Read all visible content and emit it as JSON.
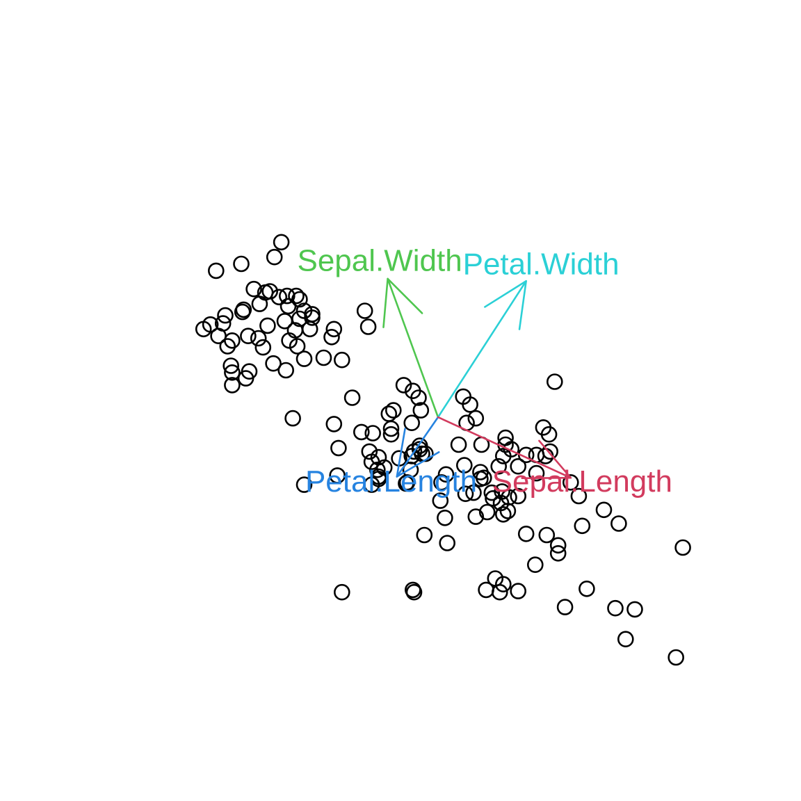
{
  "chart_data": {
    "type": "scatter",
    "title": "",
    "xlabel": "",
    "ylabel": "",
    "axes_visible": false,
    "grid": false,
    "xlim": [
      -3.1,
      3.1
    ],
    "ylim": [
      -3.1,
      3.1
    ],
    "origin": [
      0,
      0
    ],
    "points": [
      [
        -1.37,
        1.53
      ],
      [
        -1.94,
        1.28
      ],
      [
        -1.43,
        1.4
      ],
      [
        -1.72,
        1.34
      ],
      [
        -1.51,
        1.09
      ],
      [
        -1.47,
        1.1
      ],
      [
        -1.86,
        0.89
      ],
      [
        -1.66,
        0.71
      ],
      [
        -1.24,
        1.06
      ],
      [
        -1.92,
        0.71
      ],
      [
        -1.81,
        0.45
      ],
      [
        -1.32,
        1.06
      ],
      [
        -1.99,
        0.81
      ],
      [
        -1.71,
        0.92
      ],
      [
        -1.61,
        1.12
      ],
      [
        -1.17,
        0.93
      ],
      [
        -0.84,
        0.5
      ],
      [
        -1.49,
        0.8
      ],
      [
        -1.33,
        0.41
      ],
      [
        -1.7,
        0.94
      ],
      [
        -1.88,
        0.82
      ],
      [
        -2.05,
        0.77
      ],
      [
        -1.84,
        0.62
      ],
      [
        -1.8,
        0.67
      ],
      [
        -1.57,
        0.69
      ],
      [
        -1.44,
        0.47
      ],
      [
        -1.56,
        0.99
      ],
      [
        -1.1,
        0.87
      ],
      [
        -1.0,
        0.52
      ],
      [
        -1.65,
        0.4
      ],
      [
        -1.12,
        0.77
      ],
      [
        -1.25,
        0.76
      ],
      [
        -1.1,
        0.9
      ],
      [
        -1.3,
        0.67
      ],
      [
        -0.91,
        0.77
      ],
      [
        -0.93,
        0.7
      ],
      [
        -1.53,
        0.61
      ],
      [
        -0.61,
        0.79
      ],
      [
        -0.64,
        0.93
      ],
      [
        -1.34,
        0.84
      ],
      [
        -1.21,
        0.86
      ],
      [
        -1.68,
        0.34
      ],
      [
        -1.31,
        0.97
      ],
      [
        -1.17,
        0.51
      ],
      [
        -1.8,
        0.28
      ],
      [
        -1.23,
        0.62
      ],
      [
        -1.8,
        0.39
      ],
      [
        -1.39,
        1.05
      ],
      [
        -1.21,
        1.03
      ],
      [
        -0.75,
        0.17
      ],
      [
        -1.27,
        -0.01
      ],
      [
        -0.91,
        -0.06
      ],
      [
        -0.67,
        -0.13
      ],
      [
        -0.57,
        -0.14
      ],
      [
        -0.41,
        -0.1
      ],
      [
        -0.41,
        -0.15
      ],
      [
        -0.23,
        -0.05
      ],
      [
        -0.15,
        0.06
      ],
      [
        -0.17,
        0.17
      ],
      [
        -0.3,
        0.28
      ],
      [
        -0.22,
        0.23
      ],
      [
        -0.39,
        0.06
      ],
      [
        -0.43,
        0.03
      ],
      [
        -0.6,
        -0.3
      ],
      [
        -0.87,
        -0.27
      ],
      [
        -0.88,
        -0.51
      ],
      [
        -0.58,
        -0.59
      ],
      [
        -0.47,
        -0.44
      ],
      [
        -0.53,
        -0.46
      ],
      [
        -0.52,
        -0.52
      ],
      [
        -0.58,
        -0.39
      ],
      [
        -1.17,
        -0.59
      ],
      [
        -0.34,
        -0.36
      ],
      [
        -0.52,
        -0.35
      ],
      [
        -0.21,
        -0.3
      ],
      [
        -0.24,
        -0.46
      ],
      [
        -0.27,
        -0.57
      ],
      [
        -0.16,
        -0.28
      ],
      [
        -0.14,
        -0.32
      ],
      [
        -0.16,
        -0.25
      ],
      [
        0.07,
        -0.5
      ],
      [
        -0.23,
        -0.34
      ],
      [
        -0.11,
        -0.32
      ],
      [
        -0.28,
        -0.58
      ],
      [
        -0.52,
        -0.54
      ],
      [
        0.18,
        -0.24
      ],
      [
        0.33,
        -0.01
      ],
      [
        0.38,
        -0.24
      ],
      [
        0.22,
        0.18
      ],
      [
        0.28,
        0.11
      ],
      [
        0.24,
        -0.67
      ],
      [
        0.23,
        -0.42
      ],
      [
        0.37,
        -0.48
      ],
      [
        0.4,
        -0.53
      ],
      [
        0.37,
        -0.54
      ],
      [
        0.31,
        -0.66
      ],
      [
        0.33,
        -0.87
      ],
      [
        0.02,
        -0.73
      ],
      [
        -0.12,
        -1.03
      ],
      [
        0.06,
        -0.88
      ],
      [
        0.43,
        -0.83
      ],
      [
        0.62,
        -0.7
      ],
      [
        0.77,
        -1.02
      ],
      [
        0.95,
        -1.03
      ],
      [
        0.7,
        -0.43
      ],
      [
        0.64,
        -0.28
      ],
      [
        0.57,
        -0.34
      ],
      [
        0.53,
        -0.43
      ],
      [
        0.47,
        -0.66
      ],
      [
        0.56,
        -0.65
      ],
      [
        0.48,
        -0.71
      ],
      [
        0.55,
        -0.75
      ],
      [
        0.86,
        -0.49
      ],
      [
        0.7,
        -0.69
      ],
      [
        0.61,
        -0.82
      ],
      [
        0.57,
        -0.85
      ],
      [
        0.77,
        -0.33
      ],
      [
        0.86,
        -0.33
      ],
      [
        0.59,
        -0.24
      ],
      [
        0.59,
        -0.18
      ],
      [
        0.92,
        -0.09
      ],
      [
        0.97,
        -0.15
      ],
      [
        0.94,
        -0.34
      ],
      [
        0.98,
        -0.3
      ],
      [
        1.16,
        -0.57
      ],
      [
        1.23,
        -0.69
      ],
      [
        1.26,
        -0.95
      ],
      [
        1.45,
        -0.81
      ],
      [
        1.58,
        -0.93
      ],
      [
        2.14,
        -1.14
      ],
      [
        1.72,
        -1.68
      ],
      [
        1.55,
        -1.67
      ],
      [
        1.11,
        -1.66
      ],
      [
        0.54,
        -1.53
      ],
      [
        0.57,
        -1.46
      ],
      [
        0.42,
        -1.51
      ],
      [
        0.7,
        -1.52
      ],
      [
        0.85,
        -1.29
      ],
      [
        1.05,
        -1.19
      ],
      [
        1.05,
        -1.12
      ],
      [
        1.3,
        -1.5
      ],
      [
        1.64,
        -1.94
      ],
      [
        2.08,
        -2.1
      ],
      [
        0.03,
        -0.57
      ],
      [
        0.5,
        -1.41
      ],
      [
        -0.84,
        -1.53
      ],
      [
        -0.22,
        -1.51
      ],
      [
        -0.21,
        -1.53
      ],
      [
        0.25,
        -0.05
      ],
      [
        0.08,
        -1.1
      ],
      [
        1.02,
        0.31
      ]
    ],
    "vectors": [
      {
        "name": "Sepal.Width",
        "end": [
          -0.44,
          1.21
        ],
        "label_pos": [
          -0.51,
          1.35
        ],
        "color": "#4fc64f"
      },
      {
        "name": "Petal.Width",
        "end": [
          0.77,
          1.19
        ],
        "label_pos": [
          0.9,
          1.32
        ],
        "color": "#2bd0d6"
      },
      {
        "name": "Petal.Length",
        "end": [
          -0.36,
          -0.52
        ],
        "label_pos": [
          -0.41,
          -0.58
        ],
        "color": "#2683e0"
      },
      {
        "name": "Sepal.Length",
        "end": [
          1.16,
          -0.53
        ],
        "label_pos": [
          1.26,
          -0.58
        ],
        "color": "#d23b5e"
      }
    ]
  }
}
